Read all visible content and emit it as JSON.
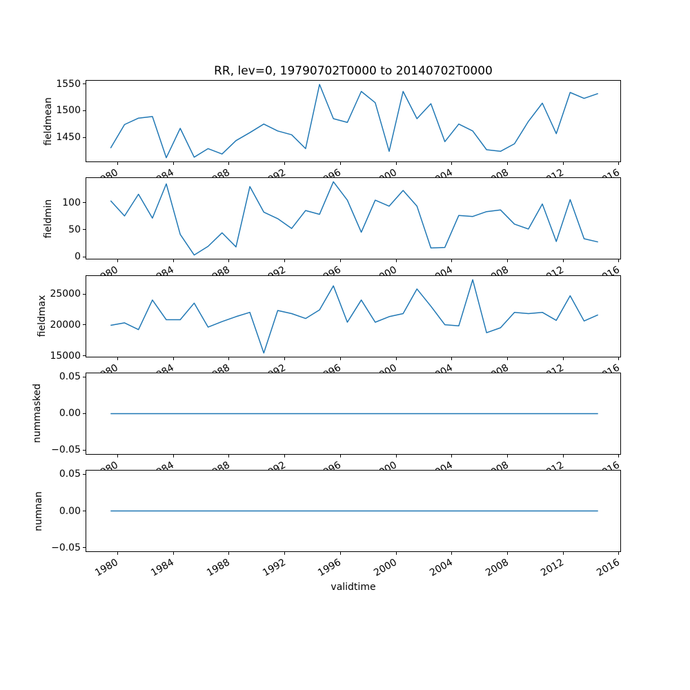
{
  "figure": {
    "title": "RR, lev=0, 19790702T0000 to 20140702T0000",
    "background_color": "#ffffff",
    "line_color": "#1f77b4",
    "axis_color": "#000000"
  },
  "chart_data": {
    "type": "line",
    "title": "RR, lev=0, 19790702T0000 to 20140702T0000",
    "x_label": "validtime",
    "legend": "none",
    "grid": false,
    "x": [
      1979,
      1980,
      1981,
      1982,
      1983,
      1984,
      1985,
      1986,
      1987,
      1988,
      1989,
      1990,
      1991,
      1992,
      1993,
      1994,
      1995,
      1996,
      1997,
      1998,
      1999,
      2000,
      2001,
      2002,
      2003,
      2004,
      2005,
      2006,
      2007,
      2008,
      2009,
      2010,
      2011,
      2012,
      2013,
      2014
    ],
    "x_point_offset": 0.5,
    "xlim": [
      1977.75,
      2016.1
    ],
    "x_ticks": [
      1980,
      1984,
      1988,
      1992,
      1996,
      2000,
      2004,
      2008,
      2012,
      2016
    ],
    "x_tick_labels": [
      "1980",
      "1984",
      "1988",
      "1992",
      "1996",
      "2000",
      "2004",
      "2008",
      "2012",
      "2016"
    ],
    "subplots": [
      {
        "ylabel": "fieldmean",
        "ylim": [
          1405,
          1556
        ],
        "y_ticks": [
          1450,
          1500,
          1550
        ],
        "y_tick_labels": [
          "1450",
          "1500",
          "1550"
        ],
        "values": [
          1430,
          1474,
          1486,
          1489,
          1412,
          1467,
          1413,
          1429,
          1419,
          1444,
          1459,
          1475,
          1462,
          1455,
          1429,
          1549,
          1485,
          1478,
          1536,
          1515,
          1424,
          1536,
          1485,
          1513,
          1442,
          1475,
          1462,
          1427,
          1424,
          1438,
          1480,
          1514,
          1457,
          1534,
          1523,
          1532
        ]
      },
      {
        "ylabel": "fieldmin",
        "ylim": [
          -3.8,
          144.8
        ],
        "y_ticks": [
          0,
          50,
          100
        ],
        "y_tick_labels": [
          "0",
          "50",
          "100"
        ],
        "values": [
          103,
          75,
          115,
          71,
          134,
          41,
          3,
          19,
          44,
          18,
          129,
          82,
          70,
          52,
          85,
          78,
          138,
          104,
          45,
          104,
          93,
          122,
          93,
          16,
          17,
          76,
          74,
          83,
          86,
          60,
          51,
          97,
          28,
          105,
          33,
          27
        ]
      },
      {
        "ylabel": "fieldmax",
        "ylim": [
          14900,
          28000
        ],
        "y_ticks": [
          15000,
          20000,
          25000
        ],
        "y_tick_labels": [
          "15000",
          "20000",
          "25000"
        ],
        "values": [
          20000,
          20400,
          19300,
          24100,
          20900,
          20900,
          23600,
          19700,
          20600,
          21400,
          22100,
          15500,
          22400,
          21900,
          21100,
          22500,
          26400,
          20500,
          24100,
          20500,
          21400,
          21900,
          25900,
          23100,
          20100,
          19900,
          27400,
          18800,
          19600,
          22100,
          21900,
          22100,
          20800,
          24800,
          20700,
          21700
        ]
      },
      {
        "ylabel": "nummasked",
        "ylim": [
          -0.055,
          0.055
        ],
        "y_ticks": [
          -0.05,
          0,
          0.05
        ],
        "y_tick_labels": [
          "−0.05",
          "0.00",
          "0.05"
        ],
        "values": [
          0,
          0,
          0,
          0,
          0,
          0,
          0,
          0,
          0,
          0,
          0,
          0,
          0,
          0,
          0,
          0,
          0,
          0,
          0,
          0,
          0,
          0,
          0,
          0,
          0,
          0,
          0,
          0,
          0,
          0,
          0,
          0,
          0,
          0,
          0,
          0
        ]
      },
      {
        "ylabel": "numnan",
        "ylim": [
          -0.055,
          0.055
        ],
        "y_ticks": [
          -0.05,
          0,
          0.05
        ],
        "y_tick_labels": [
          "−0.05",
          "0.00",
          "0.05"
        ],
        "values": [
          0,
          0,
          0,
          0,
          0,
          0,
          0,
          0,
          0,
          0,
          0,
          0,
          0,
          0,
          0,
          0,
          0,
          0,
          0,
          0,
          0,
          0,
          0,
          0,
          0,
          0,
          0,
          0,
          0,
          0,
          0,
          0,
          0,
          0,
          0,
          0
        ]
      }
    ]
  }
}
